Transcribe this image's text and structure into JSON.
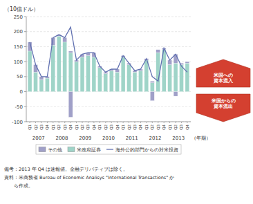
{
  "chart_data": {
    "type": "bar",
    "title": "（10億ドル）",
    "x_label": "（年期）",
    "categories": [
      "Q1",
      "Q2",
      "Q3",
      "Q4",
      "Q1",
      "Q2",
      "Q3",
      "Q4",
      "Q1",
      "Q2",
      "Q3",
      "Q4",
      "Q1",
      "Q2",
      "Q3",
      "Q4",
      "Q1",
      "Q2",
      "Q3",
      "Q4",
      "Q1",
      "Q2",
      "Q3",
      "Q4",
      "Q1",
      "Q2",
      "Q3",
      "Q4"
    ],
    "x_groups": [
      "2007",
      "2008",
      "2009",
      "2010",
      "2011",
      "2012",
      "2013"
    ],
    "series": [
      {
        "name": "その他",
        "type": "bar",
        "color": "#a0a0c8",
        "values": [
          30,
          25,
          10,
          5,
          25,
          5,
          15,
          5,
          5,
          10,
          10,
          15,
          5,
          5,
          5,
          10,
          5,
          5,
          5,
          5,
          5,
          5,
          10,
          5,
          15,
          30,
          5,
          5
        ],
        "negative_values": [
          0,
          0,
          0,
          0,
          0,
          0,
          0,
          -85,
          0,
          0,
          0,
          0,
          0,
          0,
          0,
          0,
          0,
          0,
          0,
          0,
          0,
          -30,
          0,
          0,
          0,
          -15,
          0,
          0
        ]
      },
      {
        "name": "米政府証券",
        "type": "bar",
        "color": "#9fd4c8",
        "values": [
          135,
          65,
          40,
          45,
          155,
          185,
          165,
          130,
          100,
          115,
          120,
          115,
          80,
          60,
          70,
          65,
          115,
          90,
          65,
          70,
          105,
          30,
          130,
          140,
          90,
          95,
          90,
          95
        ]
      },
      {
        "name": "海外公的部門からの対米投資",
        "type": "line",
        "color": "#6070b0",
        "values": [
          165,
          90,
          50,
          50,
          180,
          190,
          180,
          215,
          105,
          125,
          130,
          130,
          85,
          65,
          75,
          75,
          120,
          95,
          70,
          75,
          110,
          50,
          35,
          145,
          105,
          125,
          85,
          65
        ]
      }
    ],
    "stacked": true,
    "ylim": [
      -100,
      250
    ],
    "yticks": [
      -100,
      -50,
      0,
      50,
      100,
      150,
      200,
      250
    ],
    "grid": true,
    "legend": "bottom",
    "annotations": [
      {
        "text": "米国への\n資本流入",
        "color": "#d44030"
      },
      {
        "text": "米国からの\n資本流出",
        "color": "#d44030"
      }
    ],
    "notes": [
      "備考：2013 年 Q4 は速報値。金融デリバティブは除く。",
      "資料：米商務省 Bureau of Economic Analisys \"International Transactions\" か",
      "　　ら作成。"
    ]
  }
}
